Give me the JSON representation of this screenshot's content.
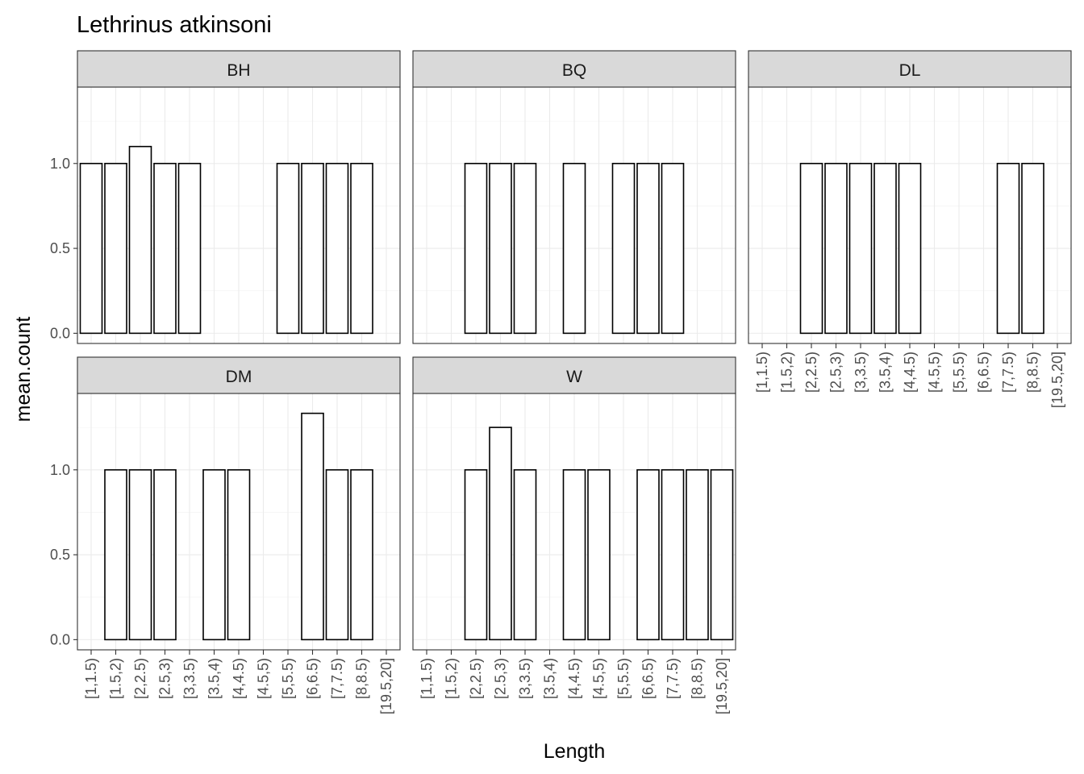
{
  "chart_data": {
    "type": "bar",
    "title": "Lethrinus atkinsoni",
    "xlabel": "Length",
    "ylabel": "mean.count",
    "categories": [
      "[1,1.5)",
      "[1.5,2)",
      "[2,2.5)",
      "[2.5,3)",
      "[3,3.5)",
      "[3.5,4)",
      "[4,4.5)",
      "[4.5,5)",
      "[5,5.5)",
      "[6,6.5)",
      "[7,7.5)",
      "[8,8.5)",
      "[19.5,20]"
    ],
    "yticks": [
      0.0,
      0.5,
      1.0
    ],
    "ytick_labels": [
      "0.0",
      "0.5",
      "1.0"
    ],
    "ylim": [
      -0.06,
      1.45
    ],
    "grid": true,
    "facets": [
      {
        "name": "BH",
        "values": [
          1.0,
          1.0,
          1.1,
          1.0,
          1.0,
          null,
          null,
          null,
          1.0,
          1.0,
          1.0,
          1.0,
          null
        ]
      },
      {
        "name": "BQ",
        "values": [
          null,
          null,
          1.0,
          1.0,
          1.0,
          null,
          1.0,
          null,
          1.0,
          1.0,
          1.0,
          null,
          null
        ]
      },
      {
        "name": "DL",
        "values": [
          null,
          null,
          1.0,
          1.0,
          1.0,
          1.0,
          1.0,
          null,
          null,
          null,
          1.0,
          1.0,
          null
        ]
      },
      {
        "name": "DM",
        "values": [
          null,
          1.0,
          1.0,
          1.0,
          null,
          1.0,
          1.0,
          null,
          null,
          1.333,
          1.0,
          1.0,
          null
        ]
      },
      {
        "name": "W",
        "values": [
          null,
          null,
          1.0,
          1.25,
          1.0,
          null,
          1.0,
          1.0,
          null,
          1.0,
          1.0,
          1.0,
          1.0
        ]
      }
    ]
  }
}
